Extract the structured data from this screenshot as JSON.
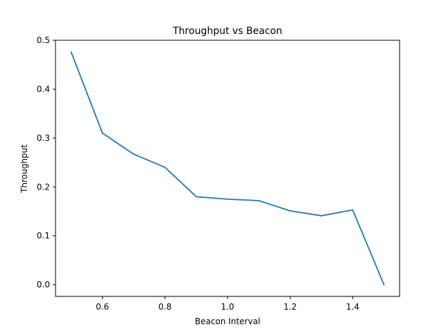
{
  "chart_data": {
    "type": "line",
    "title": "Throughput vs Beacon",
    "xlabel": "Beacon Interval",
    "ylabel": "Throughput",
    "xlim": [
      0.45,
      1.55
    ],
    "ylim": [
      -0.024,
      0.5
    ],
    "x_ticks": [
      0.6,
      0.8,
      1.0,
      1.2,
      1.4
    ],
    "x_tick_labels": [
      "0.6",
      "0.8",
      "1.0",
      "1.2",
      "1.4"
    ],
    "y_ticks": [
      0.0,
      0.1,
      0.2,
      0.3,
      0.4,
      0.5
    ],
    "y_tick_labels": [
      "0.0",
      "0.1",
      "0.2",
      "0.3",
      "0.4",
      "0.5"
    ],
    "grid": false,
    "legend": "none",
    "series": [
      {
        "color": "#1f77b4",
        "x": [
          0.5,
          0.6,
          0.7,
          0.8,
          0.9,
          1.0,
          1.1,
          1.2,
          1.3,
          1.4,
          1.5
        ],
        "y": [
          0.476,
          0.31,
          0.267,
          0.24,
          0.18,
          0.175,
          0.172,
          0.151,
          0.141,
          0.153,
          0.0
        ]
      }
    ]
  }
}
